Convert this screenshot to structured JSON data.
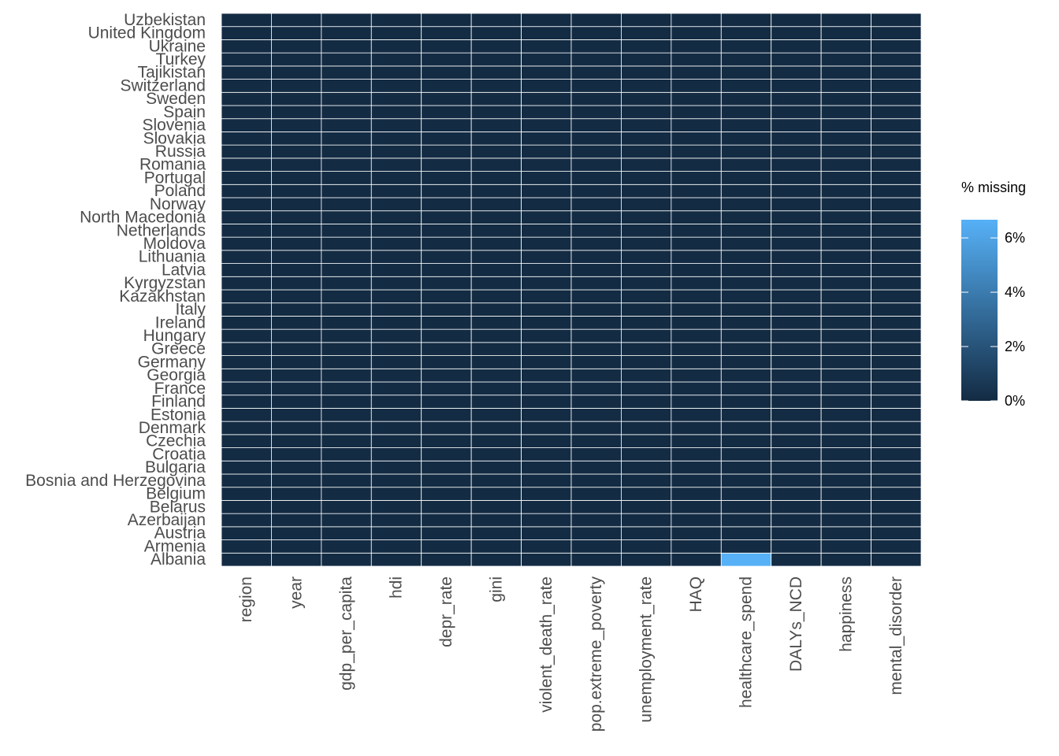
{
  "chart_data": {
    "type": "heatmap",
    "rows": [
      "Albania",
      "Armenia",
      "Austria",
      "Azerbaijan",
      "Belarus",
      "Belgium",
      "Bosnia and Herzegovina",
      "Bulgaria",
      "Croatia",
      "Czechia",
      "Denmark",
      "Estonia",
      "Finland",
      "France",
      "Georgia",
      "Germany",
      "Greece",
      "Hungary",
      "Ireland",
      "Italy",
      "Kazakhstan",
      "Kyrgyzstan",
      "Latvia",
      "Lithuania",
      "Moldova",
      "Netherlands",
      "North Macedonia",
      "Norway",
      "Poland",
      "Portugal",
      "Romania",
      "Russia",
      "Slovakia",
      "Slovenia",
      "Spain",
      "Sweden",
      "Switzerland",
      "Tajikistan",
      "Turkey",
      "Ukraine",
      "United Kingdom",
      "Uzbekistan"
    ],
    "columns": [
      "region",
      "year",
      "gdp_per_capita",
      "hdi",
      "depr_rate",
      "gini",
      "violent_death_rate",
      "pop.extreme_poverty",
      "unemployment_rate",
      "HAQ",
      "healthcare_spend",
      "DALYs_NCD",
      "happiness",
      "mental_disorder"
    ],
    "nonzero_cells": [
      {
        "row": "Albania",
        "column": "healthcare_spend",
        "value": 6.67
      }
    ],
    "default_value": 0,
    "value_unit": "%",
    "legend": {
      "title": "% missing",
      "ticks": [
        0,
        2,
        4,
        6
      ],
      "tick_labels": [
        "0%",
        "2%",
        "4%",
        "6%"
      ],
      "range": [
        0,
        6.67
      ],
      "low_color": "#132B43",
      "high_color": "#56B1F7",
      "placement": "right"
    },
    "grid_line_color": "#ffffff"
  }
}
